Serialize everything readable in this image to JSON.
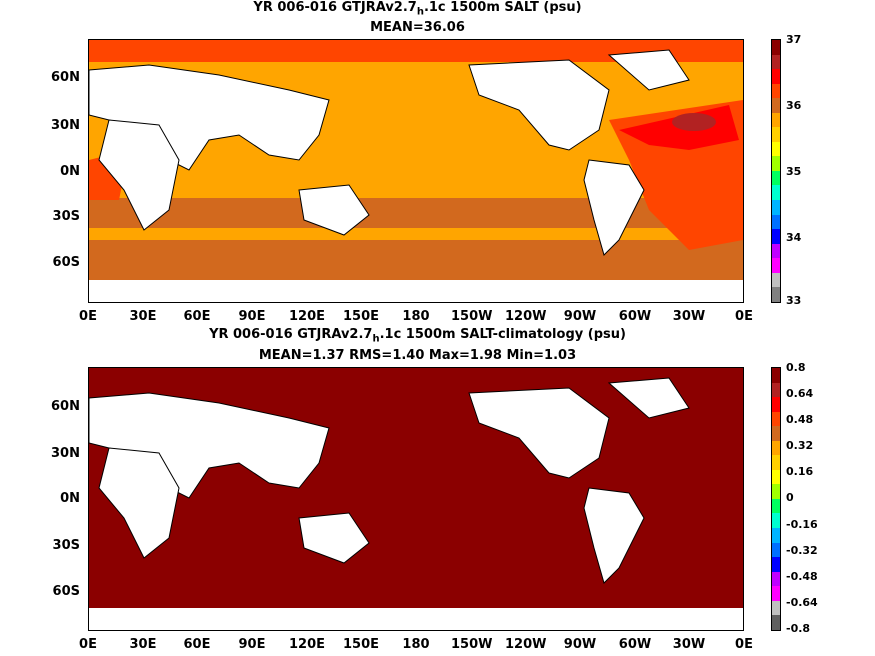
{
  "top": {
    "title_prefix": "YR 006-016 GTJRAv2.7",
    "title_sub": "h",
    "title_suffix": ".1c 1500m SALT (psu)",
    "stats": "MEAN=36.06",
    "ylabels": [
      "60N",
      "30N",
      "0N",
      "30S",
      "60S"
    ],
    "xlabels": [
      "0E",
      "30E",
      "60E",
      "90E",
      "120E",
      "150E",
      "180",
      "150W",
      "120W",
      "90W",
      "60W",
      "30W",
      "0E"
    ],
    "colorbar_labels": [
      "37",
      "36",
      "35",
      "34",
      "33"
    ],
    "colorbar_colors": [
      "#808080",
      "#c0c0c0",
      "#ff00ff",
      "#c000ff",
      "#0000ff",
      "#0070ff",
      "#00b4ff",
      "#00ffd0",
      "#00ff60",
      "#a0ff00",
      "#ffff00",
      "#ffd000",
      "#ffa500",
      "#d2691e",
      "#ff4500",
      "#ff0000",
      "#b22222",
      "#8b0000"
    ]
  },
  "bottom": {
    "title_prefix": "YR 006-016 GTJRAv2.7",
    "title_sub": "h",
    "title_suffix": ".1c 1500m SALT-climatology (psu)",
    "stats": "MEAN=1.37   RMS=1.40   Max=1.98   Min=1.03",
    "ylabels": [
      "60N",
      "30N",
      "0N",
      "30S",
      "60S"
    ],
    "xlabels": [
      "0E",
      "30E",
      "60E",
      "90E",
      "120E",
      "150E",
      "180",
      "150W",
      "120W",
      "90W",
      "60W",
      "30W",
      "0E"
    ],
    "colorbar_labels": [
      "0.8",
      "0.64",
      "0.48",
      "0.32",
      "0.16",
      "0",
      "-0.16",
      "-0.32",
      "-0.48",
      "-0.64",
      "-0.8"
    ],
    "colorbar_colors": [
      "#606060",
      "#c0c0c0",
      "#ff00ff",
      "#c000ff",
      "#0000ff",
      "#0070ff",
      "#00b4ff",
      "#00ffd0",
      "#00ff60",
      "#a0ff00",
      "#ffff00",
      "#ffd000",
      "#ffa500",
      "#d2691e",
      "#ff4500",
      "#ff0000",
      "#b22222",
      "#8b0000"
    ]
  },
  "colors": {
    "land": "#ffffff",
    "salt_main": "#ffa500",
    "salt_south": "#d2691e",
    "salt_high": "#ff4500",
    "salt_red": "#ff0000",
    "salt_max": "#b22222",
    "anomaly_fill": "#8b0000"
  }
}
